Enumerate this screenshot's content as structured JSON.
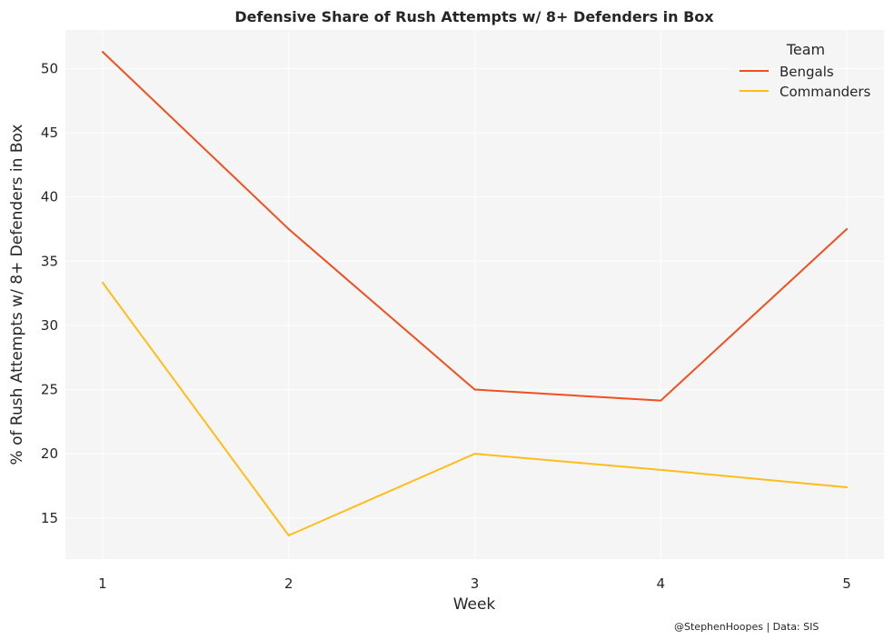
{
  "chart_data": {
    "type": "line",
    "title": "Defensive Share of Rush Attempts w/ 8+ Defenders in Box",
    "xlabel": "Week",
    "ylabel": "% of Rush Attempts w/ 8+ Defenders in Box",
    "x": [
      1,
      2,
      3,
      4,
      5
    ],
    "xticks": [
      "1",
      "2",
      "3",
      "4",
      "5"
    ],
    "yticks": [
      15,
      20,
      25,
      30,
      35,
      40,
      45,
      50
    ],
    "xlim": [
      0.8,
      5.2
    ],
    "ylim": [
      11.8,
      53.0
    ],
    "grid": true,
    "legend": {
      "title": "Team",
      "position": "top-right"
    },
    "series": [
      {
        "name": "Bengals",
        "color": "#f0501f",
        "values": [
          51.3,
          37.5,
          25.0,
          24.14,
          37.5
        ]
      },
      {
        "name": "Commanders",
        "color": "#ffbd1a",
        "values": [
          33.33,
          13.64,
          20.0,
          18.75,
          17.39
        ]
      }
    ]
  },
  "credit": "@StephenHoopes | Data: SIS"
}
